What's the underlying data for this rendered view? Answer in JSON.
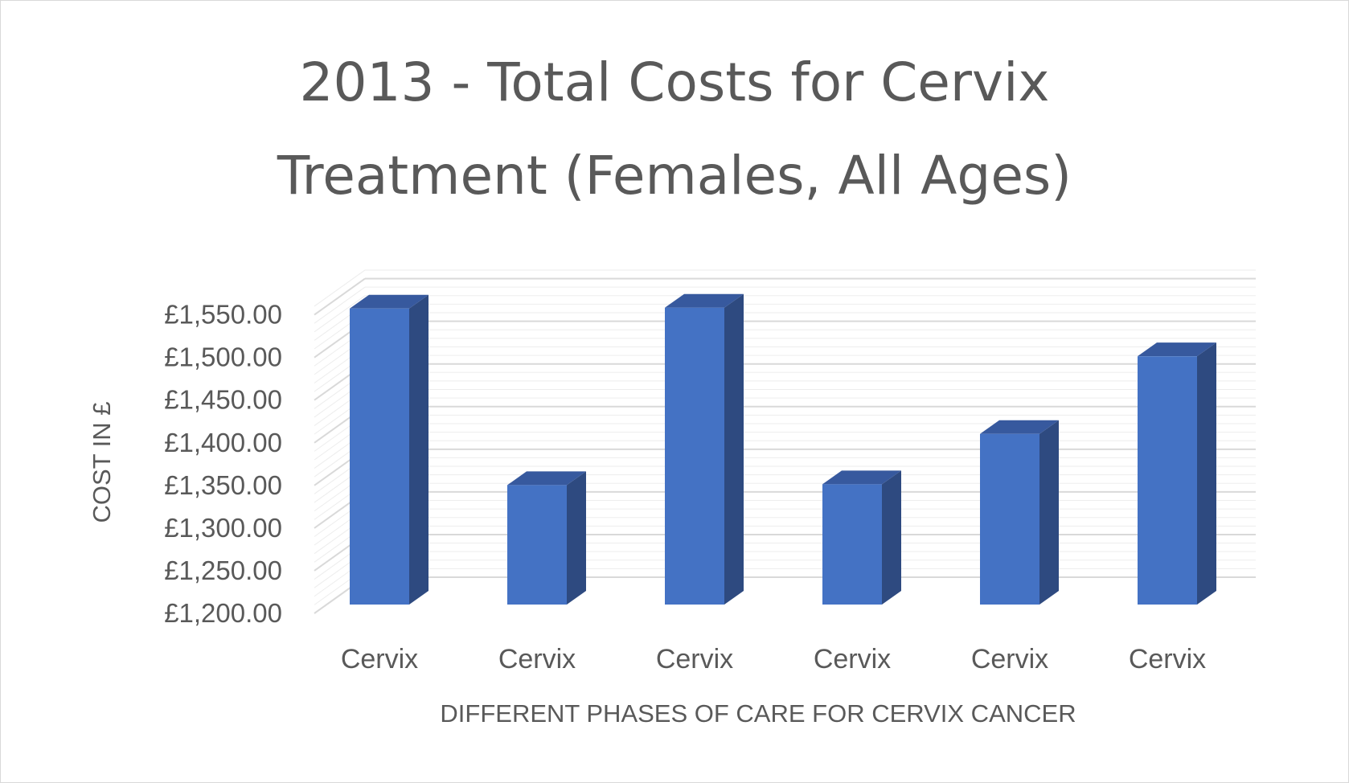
{
  "chart_data": {
    "type": "bar",
    "style": "3d-column",
    "title_lines": [
      "2013 - Total Costs for Cervix",
      "Treatment (Females, All Ages)"
    ],
    "xlabel": "DIFFERENT PHASES OF CARE FOR CERVIX CANCER",
    "ylabel": "COST IN £",
    "categories": [
      "Cervix",
      "Cervix",
      "Cervix",
      "Cervix",
      "Cervix",
      "Cervix"
    ],
    "values": [
      1547,
      1340,
      1548,
      1341,
      1400,
      1491
    ],
    "ylim": [
      1200,
      1550
    ],
    "ytick_step": 50,
    "ytick_labels": [
      "£1,200.00",
      "£1,250.00",
      "£1,300.00",
      "£1,350.00",
      "£1,400.00",
      "£1,450.00",
      "£1,500.00",
      "£1,550.00"
    ],
    "grid": true,
    "legend": "none",
    "colors": {
      "bar_front": "#4472c4",
      "bar_side": "#2e4a80",
      "bar_top": "#37599e",
      "gridline": "#d9d9d9",
      "text": "#595959"
    }
  }
}
